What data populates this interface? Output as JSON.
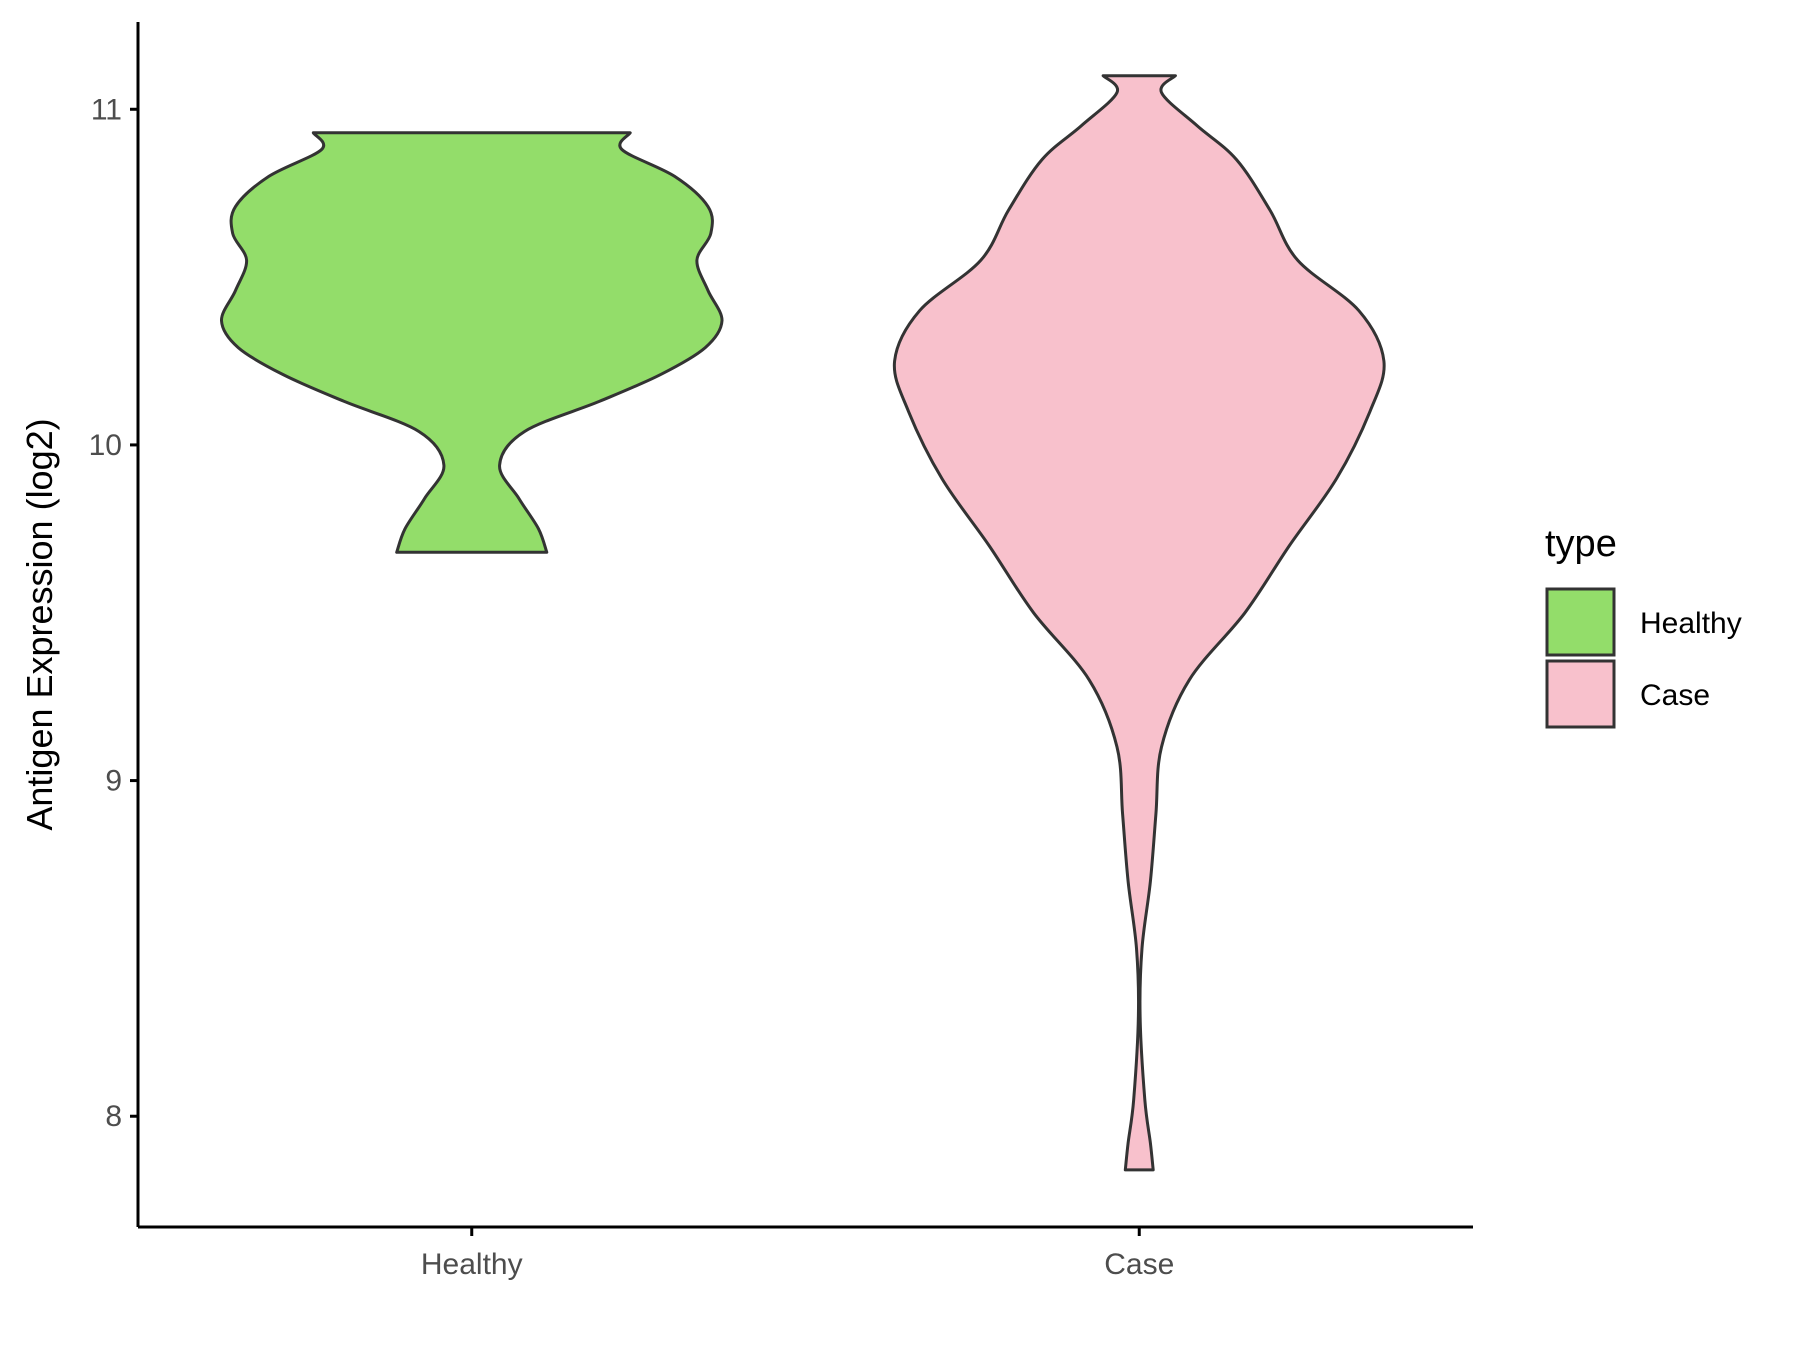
{
  "chart_data": {
    "type": "violin",
    "title": "",
    "xlabel": "",
    "ylabel": "Antigen Expression (log2)",
    "ylim": [
      7.67,
      11.26
    ],
    "yticks": [
      8,
      9,
      10,
      11
    ],
    "categories": [
      "Healthy",
      "Case"
    ],
    "grid": false,
    "legend": {
      "title": "type",
      "position": "right",
      "entries": [
        "Healthy",
        "Case"
      ]
    },
    "series": [
      {
        "name": "Healthy",
        "color": "#93dd6a",
        "min": 9.68,
        "max": 10.93,
        "density_profile": [
          [
            9.68,
            0.27
          ],
          [
            9.75,
            0.24
          ],
          [
            9.84,
            0.17
          ],
          [
            9.94,
            0.1
          ],
          [
            10.04,
            0.19
          ],
          [
            10.13,
            0.46
          ],
          [
            10.21,
            0.68
          ],
          [
            10.29,
            0.84
          ],
          [
            10.37,
            0.9
          ],
          [
            10.46,
            0.85
          ],
          [
            10.55,
            0.81
          ],
          [
            10.63,
            0.86
          ],
          [
            10.71,
            0.85
          ],
          [
            10.8,
            0.73
          ],
          [
            10.88,
            0.54
          ],
          [
            10.93,
            0.57
          ]
        ]
      },
      {
        "name": "Case",
        "color": "#f8c1cc",
        "min": 7.84,
        "max": 11.1,
        "density_profile": [
          [
            7.84,
            0.05
          ],
          [
            7.92,
            0.04
          ],
          [
            8.05,
            0.02
          ],
          [
            8.3,
            0.003
          ],
          [
            8.5,
            0.01
          ],
          [
            8.7,
            0.04
          ],
          [
            8.9,
            0.06
          ],
          [
            9.1,
            0.08
          ],
          [
            9.3,
            0.18
          ],
          [
            9.5,
            0.38
          ],
          [
            9.7,
            0.54
          ],
          [
            9.9,
            0.71
          ],
          [
            10.1,
            0.83
          ],
          [
            10.25,
            0.88
          ],
          [
            10.4,
            0.79
          ],
          [
            10.55,
            0.57
          ],
          [
            10.7,
            0.47
          ],
          [
            10.85,
            0.35
          ],
          [
            10.95,
            0.21
          ],
          [
            11.05,
            0.08
          ],
          [
            11.1,
            0.13
          ]
        ]
      }
    ]
  }
}
